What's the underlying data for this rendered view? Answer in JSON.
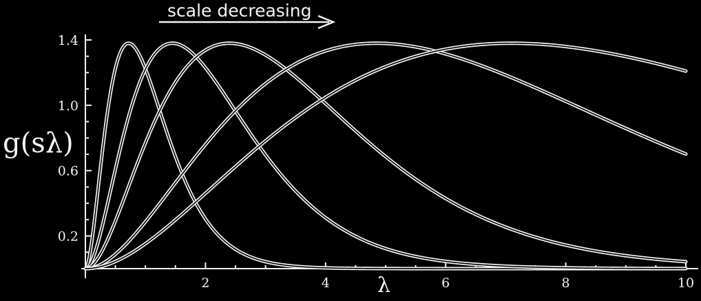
{
  "chart_data": {
    "type": "line",
    "title": "",
    "xlabel": "λ",
    "ylabel": "g(sλ)",
    "annotation": "scale decreasing",
    "xlim": [
      0,
      10
    ],
    "ylim": [
      0,
      1.4
    ],
    "xticks": [
      "2",
      "4",
      "6",
      "8",
      "10"
    ],
    "yticks": [
      "0.2",
      "0.6",
      "1.0",
      "1.4"
    ],
    "minor_xticks": [
      0.5,
      1,
      1.5,
      2.5,
      3,
      3.5,
      4.5,
      5,
      5.5,
      6.5,
      7,
      7.5,
      8.5,
      9,
      9.5
    ],
    "minor_yticks": [
      0.1,
      0.3,
      0.4,
      0.5,
      0.7,
      0.8,
      0.9,
      1.1,
      1.2,
      1.3
    ],
    "grid": false,
    "series": [
      {
        "peak_x": 0.72,
        "peak_y": 1.38
      },
      {
        "peak_x": 1.45,
        "peak_y": 1.38
      },
      {
        "peak_x": 2.4,
        "peak_y": 1.38
      },
      {
        "peak_x": 4.85,
        "peak_y": 1.38
      },
      {
        "peak_x": 7.1,
        "peak_y": 1.38
      }
    ]
  }
}
